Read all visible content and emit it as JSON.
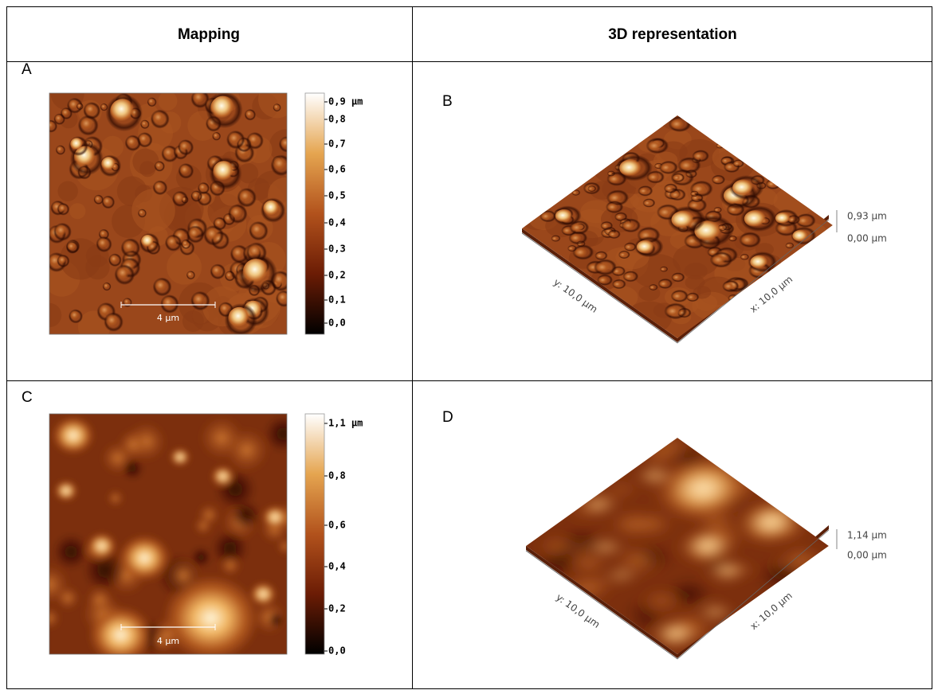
{
  "header": {
    "mapping": "Mapping",
    "representation": "3D representation"
  },
  "panels": [
    {
      "label": "A",
      "colorbar": [
        "0,9 µm",
        "0,8",
        "0,7",
        "0,6",
        "0,5",
        "0,4",
        "0,3",
        "0,2",
        "0,1",
        "0,0"
      ],
      "scale_bar": "4 µm"
    },
    {
      "label": "B",
      "z_max": "0,93 µm",
      "z_min": "0,00 µm",
      "y_axis": "y: 10,0 µm",
      "x_axis": "x: 10,0 µm"
    },
    {
      "label": "C",
      "colorbar": [
        "1,1 µm",
        "0,8",
        "0,6",
        "0,4",
        "0,2",
        "0,0"
      ],
      "scale_bar": "4 µm"
    },
    {
      "label": "D",
      "z_max": "1,14 µm",
      "z_min": "0,00 µm",
      "y_axis": "y: 10,0 µm",
      "x_axis": "x: 10,0 µm"
    }
  ]
}
